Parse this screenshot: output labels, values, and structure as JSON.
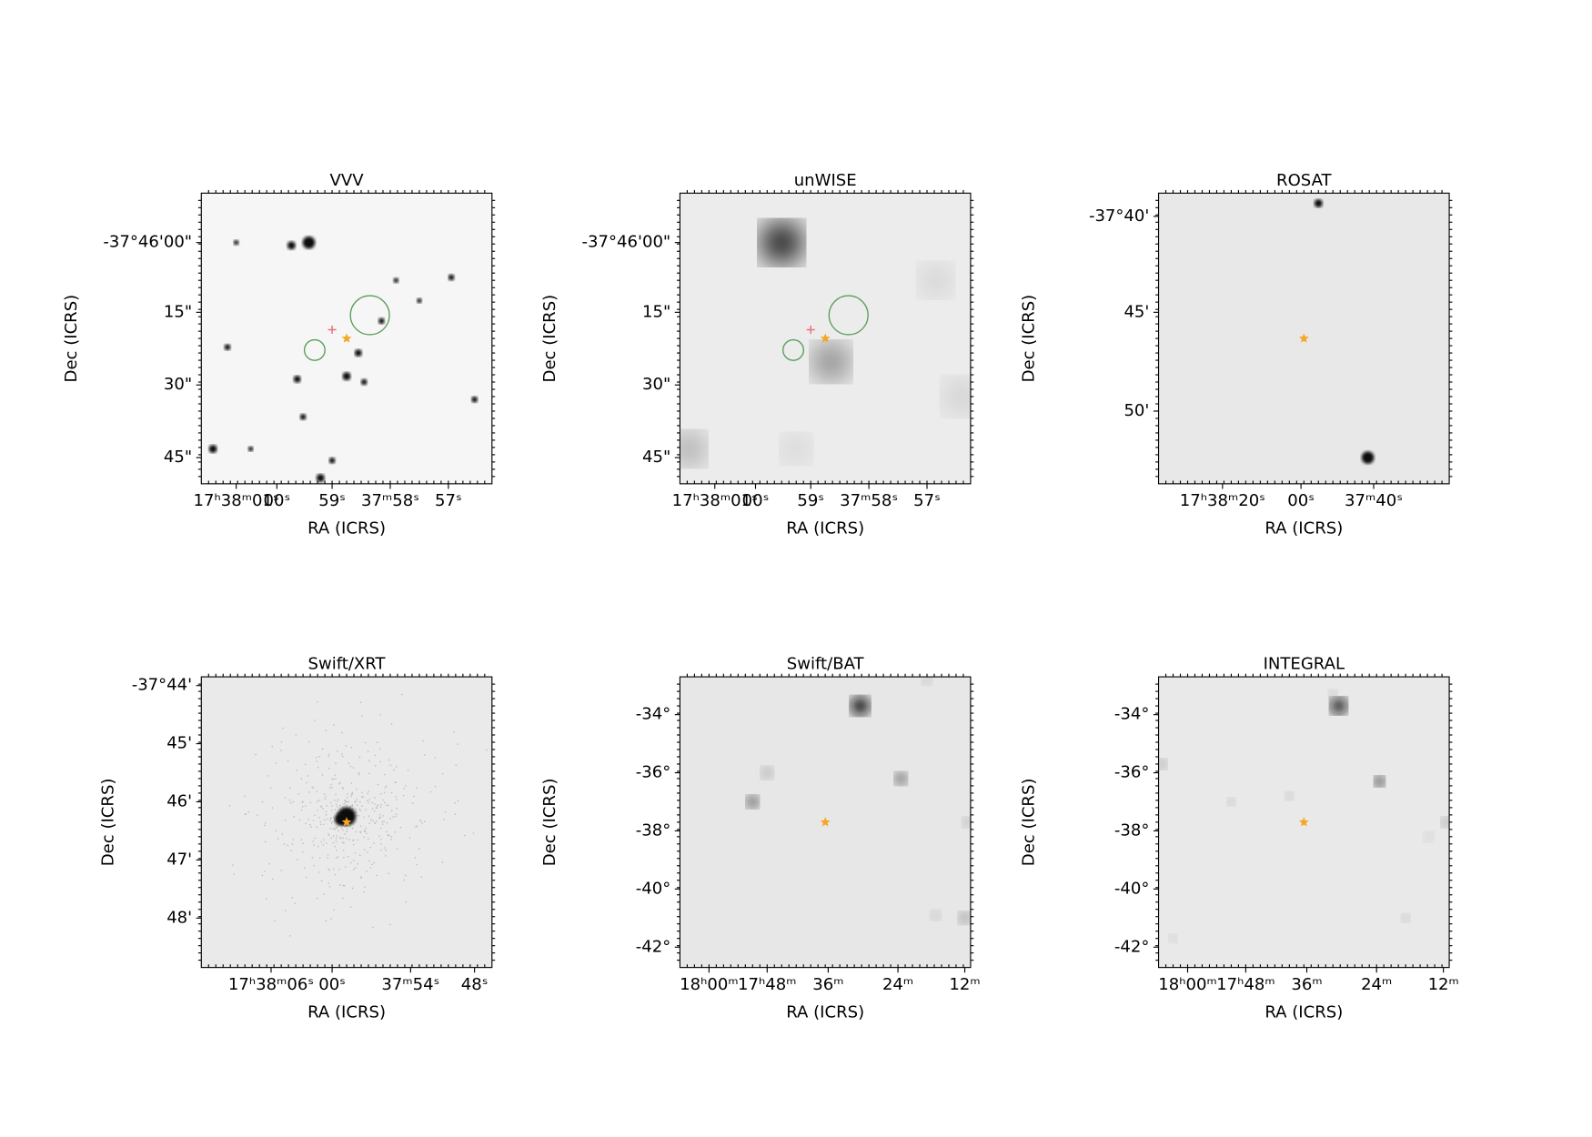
{
  "panels": [
    {
      "title": "VVV",
      "x_label": "RA (ICRS)",
      "y_label": "Dec (ICRS)",
      "x_ticks": [
        "17ʰ38ᵐ01ˢ",
        "00ˢ",
        "59ˢ",
        "37ᵐ58ˢ",
        "57ˢ"
      ],
      "y_ticks": [
        "-37°46'00\"",
        "15\"",
        "30\"",
        "45\""
      ]
    },
    {
      "title": "unWISE",
      "x_label": "RA (ICRS)",
      "y_label": "Dec (ICRS)",
      "x_ticks": [
        "17ʰ38ᵐ01ˢ",
        "00ˢ",
        "59ˢ",
        "37ᵐ58ˢ",
        "57ˢ"
      ],
      "y_ticks": [
        "-37°46'00\"",
        "15\"",
        "30\"",
        "45\""
      ]
    },
    {
      "title": "ROSAT",
      "x_label": "RA (ICRS)",
      "y_label": "Dec (ICRS)",
      "x_ticks": [
        "17ʰ38ᵐ20ˢ",
        "00ˢ",
        "37ᵐ40ˢ"
      ],
      "y_ticks": [
        "-37°40'",
        "45'",
        "50'"
      ]
    },
    {
      "title": "Swift/XRT",
      "x_label": "RA (ICRS)",
      "y_label": "Dec (ICRS)",
      "x_ticks": [
        "17ʰ38ᵐ06ˢ",
        "00ˢ",
        "37ᵐ54ˢ",
        "48ˢ"
      ],
      "y_ticks": [
        "-37°44'",
        "45'",
        "46'",
        "47'",
        "48'"
      ]
    },
    {
      "title": "Swift/BAT",
      "x_label": "RA (ICRS)",
      "y_label": "Dec (ICRS)",
      "x_ticks": [
        "18ʰ00ᵐ",
        "17ʰ48ᵐ",
        "36ᵐ",
        "24ᵐ",
        "12ᵐ"
      ],
      "y_ticks": [
        "-34°",
        "-36°",
        "-38°",
        "-40°",
        "-42°"
      ]
    },
    {
      "title": "INTEGRAL",
      "x_label": "RA (ICRS)",
      "y_label": "Dec (ICRS)",
      "x_ticks": [
        "18ʰ00ᵐ",
        "17ʰ48ᵐ",
        "36ᵐ",
        "24ᵐ",
        "12ᵐ"
      ],
      "y_ticks": [
        "-34°",
        "-36°",
        "-38°",
        "-40°",
        "-42°"
      ]
    }
  ]
}
